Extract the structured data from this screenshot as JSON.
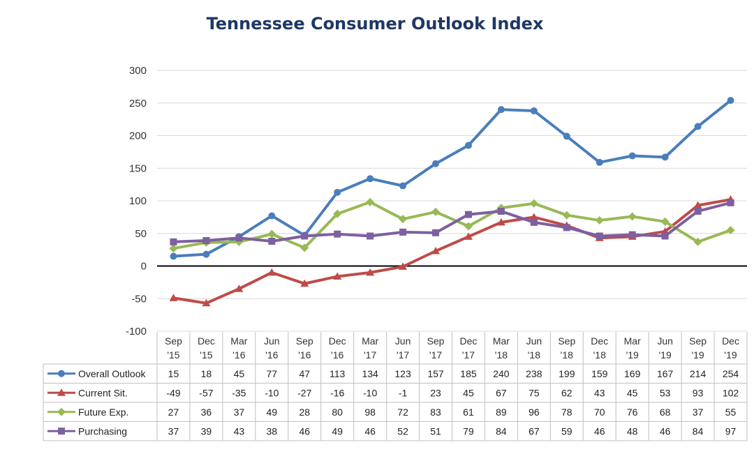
{
  "chart_data": {
    "type": "line",
    "title": "Tennessee Consumer Outlook Index",
    "ylim": [
      -100,
      300
    ],
    "yticks": [
      -100,
      -50,
      0,
      50,
      100,
      150,
      200,
      250,
      300
    ],
    "grid": true,
    "legend": "data-table",
    "categories": [
      [
        "Sep",
        "'15"
      ],
      [
        "Dec",
        "'15"
      ],
      [
        "Mar",
        "'16"
      ],
      [
        "Jun",
        "'16"
      ],
      [
        "Sep",
        "'16"
      ],
      [
        "Dec",
        "'16"
      ],
      [
        "Mar",
        "'17"
      ],
      [
        "Jun",
        "'17"
      ],
      [
        "Sep",
        "'17"
      ],
      [
        "Dec",
        "'17"
      ],
      [
        "Mar",
        "'18"
      ],
      [
        "Jun",
        "'18"
      ],
      [
        "Sep",
        "'18"
      ],
      [
        "Dec",
        "'18"
      ],
      [
        "Mar",
        "'19"
      ],
      [
        "Jun",
        "'19"
      ],
      [
        "Sep",
        "'19"
      ],
      [
        "Dec",
        "'19"
      ]
    ],
    "series": [
      {
        "name": "Overall Outlook",
        "color": "#4a7ebb",
        "marker": "circle",
        "values": [
          15,
          18,
          45,
          77,
          47,
          113,
          134,
          123,
          157,
          185,
          240,
          238,
          199,
          159,
          169,
          167,
          214,
          254
        ]
      },
      {
        "name": "Current Sit.",
        "color": "#be4b48",
        "marker": "triangle",
        "values": [
          -49,
          -57,
          -35,
          -10,
          -27,
          -16,
          -10,
          -1,
          23,
          45,
          67,
          75,
          62,
          43,
          45,
          53,
          93,
          102
        ]
      },
      {
        "name": "Future Exp.",
        "color": "#98b954",
        "marker": "diamond",
        "values": [
          27,
          36,
          37,
          49,
          28,
          80,
          98,
          72,
          83,
          61,
          89,
          96,
          78,
          70,
          76,
          68,
          37,
          55
        ]
      },
      {
        "name": "Purchasing",
        "color": "#7d60a0",
        "marker": "square",
        "values": [
          37,
          39,
          43,
          38,
          46,
          49,
          46,
          52,
          51,
          79,
          84,
          67,
          59,
          46,
          48,
          46,
          84,
          97
        ]
      }
    ]
  }
}
